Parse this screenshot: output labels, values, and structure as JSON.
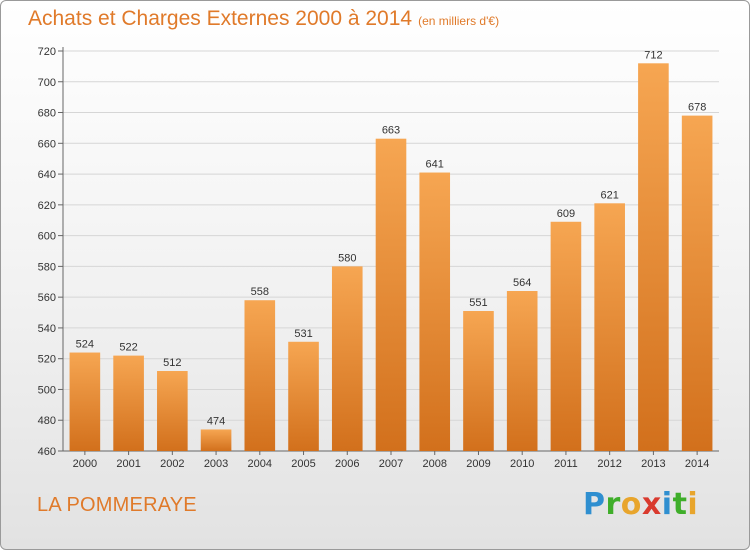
{
  "header": {
    "title": "Achats et Charges Externes 2000 à 2014",
    "subtitle": "(en milliers d'€)"
  },
  "footer": {
    "city": "LA POMMERAYE",
    "logo_letters": [
      {
        "ch": "P",
        "color": "#2f8fd0"
      },
      {
        "ch": "r",
        "color": "#3fae2a"
      },
      {
        "ch": "o",
        "color": "#e8a52c"
      },
      {
        "ch": "x",
        "color": "#d93a2e"
      },
      {
        "ch": "i",
        "color": "#2f8fd0"
      },
      {
        "ch": "t",
        "color": "#3fae2a"
      },
      {
        "ch": "i",
        "color": "#e8a52c"
      }
    ]
  },
  "chart_data": {
    "type": "bar",
    "categories": [
      "2000",
      "2001",
      "2002",
      "2003",
      "2004",
      "2005",
      "2006",
      "2007",
      "2008",
      "2009",
      "2010",
      "2011",
      "2012",
      "2013",
      "2014"
    ],
    "values": [
      524,
      522,
      512,
      474,
      558,
      531,
      580,
      663,
      641,
      551,
      564,
      609,
      621,
      712,
      678
    ],
    "title": "Achats et Charges Externes 2000 à 2014",
    "ylim": [
      460,
      720
    ],
    "yticks": [
      460,
      480,
      500,
      520,
      540,
      560,
      580,
      600,
      620,
      640,
      660,
      680,
      700,
      720
    ],
    "grid": true,
    "bar_color_top": "#f6a652",
    "bar_color_bottom": "#d2701c"
  }
}
